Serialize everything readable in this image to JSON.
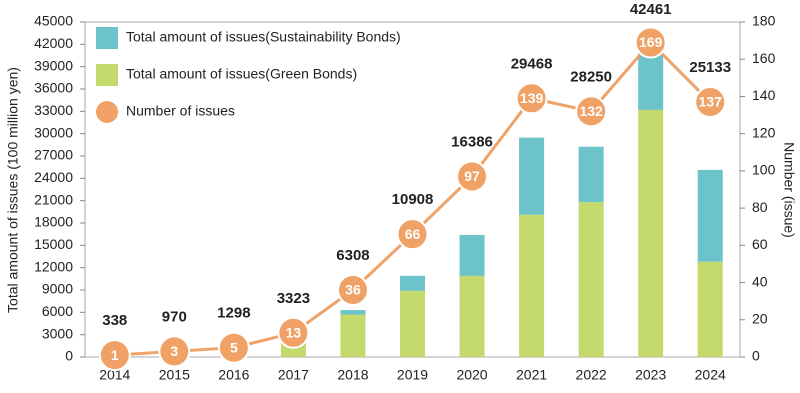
{
  "chart_data": {
    "type": "bar",
    "categories": [
      "2014",
      "2015",
      "2016",
      "2017",
      "2018",
      "2019",
      "2020",
      "2021",
      "2022",
      "2023",
      "2024"
    ],
    "series": [
      {
        "name": "Total amount of issues(Sustainability Bonds)",
        "color": "#6cc3c9",
        "values": [
          0,
          0,
          0,
          0,
          608,
          2008,
          5486,
          10368,
          7450,
          9261,
          12333
        ]
      },
      {
        "name": "Total amount of issues(Green Bonds)",
        "color": "#c3d96b",
        "values": [
          338,
          970,
          1298,
          3323,
          5700,
          8900,
          10900,
          19100,
          20800,
          33200,
          12800
        ]
      },
      {
        "name": "Number of issues",
        "type": "line",
        "axis": "y2",
        "color": "#f0a266",
        "values": [
          1,
          3,
          5,
          13,
          36,
          66,
          97,
          139,
          132,
          169,
          137
        ]
      }
    ],
    "totals": [
      338,
      970,
      1298,
      3323,
      6308,
      10908,
      16386,
      29468,
      28250,
      42461,
      25133
    ],
    "ylabel": "Total amount of issues (100 million yen)",
    "y2label": "Number (issue)",
    "ylim": [
      0,
      45000
    ],
    "yticks": [
      0,
      3000,
      6000,
      9000,
      12000,
      15000,
      18000,
      21000,
      24000,
      27000,
      30000,
      33000,
      36000,
      39000,
      42000,
      45000
    ],
    "y2lim": [
      0,
      180
    ],
    "y2ticks": [
      0,
      20,
      40,
      60,
      80,
      100,
      120,
      140,
      160,
      180
    ]
  }
}
